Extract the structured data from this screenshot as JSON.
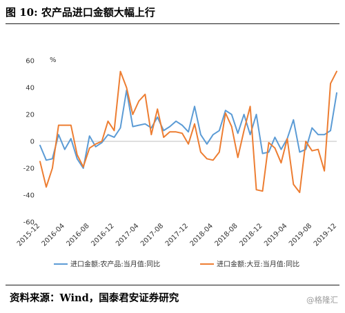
{
  "figure": {
    "title": "图 10:  农产品进口金额大幅上行",
    "source": "资料来源：Wind，国泰君安证券研究",
    "watermark": "@格隆汇"
  },
  "chart_data": {
    "type": "line",
    "title": "",
    "ylabel": "%",
    "xlabel": "",
    "ylim": [
      -60,
      60
    ],
    "yticks": [
      60,
      40,
      20,
      0,
      -20,
      -40,
      -60
    ],
    "xticks": [
      "2015-12",
      "2016-04",
      "2016-08",
      "2016-12",
      "2017-04",
      "2017-08",
      "2017-12",
      "2018-04",
      "2018-08",
      "2018-12",
      "2019-04",
      "2019-08",
      "2019-12"
    ],
    "x": [
      "2015-12",
      "2016-01",
      "2016-02",
      "2016-03",
      "2016-04",
      "2016-05",
      "2016-06",
      "2016-07",
      "2016-08",
      "2016-09",
      "2016-10",
      "2016-11",
      "2016-12",
      "2017-01",
      "2017-02",
      "2017-03",
      "2017-04",
      "2017-05",
      "2017-06",
      "2017-07",
      "2017-08",
      "2017-09",
      "2017-10",
      "2017-11",
      "2017-12",
      "2018-01",
      "2018-02",
      "2018-03",
      "2018-04",
      "2018-05",
      "2018-06",
      "2018-07",
      "2018-08",
      "2018-09",
      "2018-10",
      "2018-11",
      "2018-12",
      "2019-01",
      "2019-02",
      "2019-03",
      "2019-04",
      "2019-05",
      "2019-06",
      "2019-07",
      "2019-08",
      "2019-09",
      "2019-10",
      "2019-11",
      "2019-12"
    ],
    "grid": false,
    "legend_position": "bottom",
    "series": [
      {
        "name": "进口金额:农产品:当月值:同比",
        "color": "#5b9bd5",
        "values": [
          -3,
          -14,
          -13,
          5,
          -6,
          2,
          -13,
          -20,
          4,
          -4,
          -1,
          5,
          3,
          10,
          38,
          11,
          12,
          13,
          10,
          18,
          8,
          11,
          15,
          12,
          7,
          26,
          5,
          -2,
          5,
          8,
          23,
          20,
          6,
          20,
          5,
          20,
          -9,
          -8,
          3,
          -6,
          2,
          16,
          -8,
          -6,
          10,
          5,
          5,
          8,
          36
        ]
      },
      {
        "name": "进口金额:大豆:当月值:同比",
        "color": "#ed7d31",
        "values": [
          -15,
          -34,
          -20,
          12,
          12,
          12,
          -10,
          -19,
          -5,
          -2,
          0,
          15,
          8,
          52,
          40,
          20,
          30,
          35,
          5,
          24,
          3,
          7,
          7,
          6,
          -2,
          13,
          -8,
          -13,
          -14,
          -8,
          21,
          11,
          -12,
          8,
          26,
          -36,
          -37,
          -1,
          -5,
          -16,
          2,
          -32,
          -38,
          0,
          -7,
          -6,
          -22,
          43,
          52
        ]
      }
    ]
  }
}
